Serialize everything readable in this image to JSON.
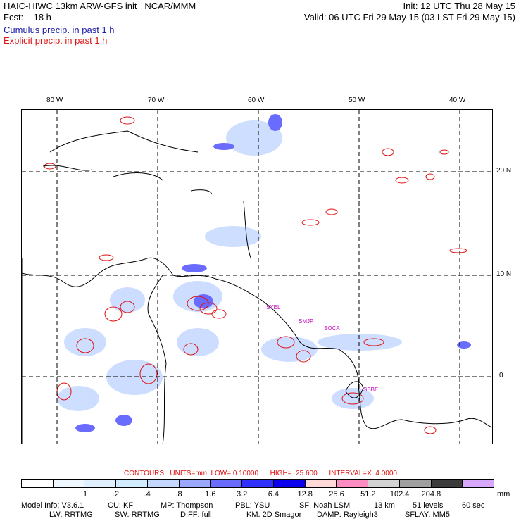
{
  "header": {
    "title": "HAIC-HIWC 13km ARW-GFS init   NCAR/MMM",
    "fcst": "Fcst:    18 h",
    "init": "Init: 12 UTC Thu 28 May 15",
    "valid": "Valid: 06 UTC Fri 29 May 15 (03 LST Fri 29 May 15)",
    "cumulus_label": "Cumulus precip. in past 1 h",
    "explicit_label": "Explicit precip. in past 1 h"
  },
  "colors": {
    "cumulus_text": "#1a1aa8",
    "explicit_text": "#e01010",
    "contour_red": "#e01010",
    "grid_line": "#000000",
    "site_magenta": "#c000c0"
  },
  "map": {
    "lon_labels": [
      "80 W",
      "70 W",
      "60 W",
      "50 W",
      "40 W"
    ],
    "lat_labels": [
      "20 N",
      "10 N",
      "0"
    ],
    "sites": [
      "SYEL",
      "SMJP",
      "SOCA",
      "SBBE"
    ]
  },
  "contours_line": "CONTOURS:  UNITS=mm  LOW= 0.10000      HIGH=  25.600      INTERVAL=X  4.0000",
  "colorbar": {
    "colors": [
      "#ffffff",
      "#f0f8ff",
      "#e0f0ff",
      "#d2ecff",
      "#c4d8ff",
      "#9aa8ff",
      "#6a6cff",
      "#3030ff",
      "#0a00ee",
      "#ffd8d8",
      "#ff8cc0",
      "#d2d2d2",
      "#a0a0a0",
      "#3c3c3c",
      "#d8a8ff"
    ],
    "labels": [
      ".1",
      ".2",
      ".4",
      ".8",
      "1.6",
      "3.2",
      "6.4",
      "12.8",
      "25.6",
      "51.2",
      "102.4",
      "204.8"
    ],
    "unit": "mm"
  },
  "model_info": {
    "line1": [
      "Model Info: V3.6.1",
      "CU: KF",
      "MP: Thompson",
      "PBL: YSU",
      "SF: Noah LSM",
      "13 km",
      "51 levels",
      "60 sec"
    ],
    "line2": [
      "LW: RRTMG",
      "SW: RRTMG",
      "DIFF: full",
      "KM: 2D Smagor",
      "DAMP: Rayleigh3",
      "SFLAY: MM5"
    ]
  }
}
